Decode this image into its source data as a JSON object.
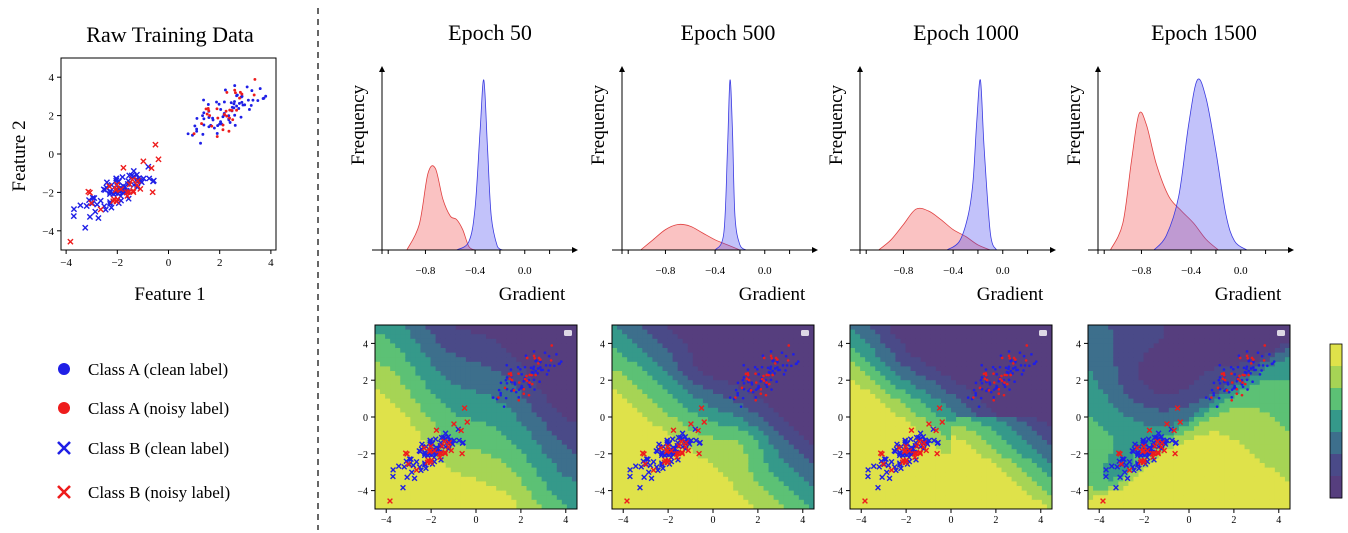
{
  "raw_panel": {
    "title": "Raw Training Data",
    "xlabel": "Feature 1",
    "ylabel": "Feature 2",
    "ticks": [
      -4,
      -2,
      0,
      2,
      4
    ]
  },
  "legend": {
    "items": [
      {
        "label": "Class A (clean label)",
        "marker": "circle",
        "color": "#1f1fe6"
      },
      {
        "label": "Class A (noisy label)",
        "marker": "circle",
        "color": "#ee1c1c"
      },
      {
        "label": "Class B (clean label)",
        "marker": "x",
        "color": "#1f1fe6"
      },
      {
        "label": "Class B (noisy label)",
        "marker": "x",
        "color": "#ee1c1c"
      }
    ]
  },
  "epochs": [
    {
      "title": "Epoch 50"
    },
    {
      "title": "Epoch 500"
    },
    {
      "title": "Epoch 1000"
    },
    {
      "title": "Epoch 1500"
    }
  ],
  "gradient_plot": {
    "xlabel": "Gradient",
    "ylabel": "Frequency",
    "ticks": [
      "−0.8",
      "−0.4",
      "0.0"
    ]
  },
  "boundary_plot": {
    "ticks": [
      -4,
      -2,
      0,
      2,
      4
    ]
  },
  "colors": {
    "clean": "#1f1fe6",
    "noisy": "#ee1c1c",
    "kde_clean_fill": "rgba(80,80,240,0.35)",
    "kde_noisy_fill": "rgba(240,80,80,0.35)",
    "contour": [
      "#dfe24a",
      "#a6d455",
      "#5cc175",
      "#35998a",
      "#3d6f8c",
      "#4a4a88",
      "#563e7e"
    ]
  },
  "chart_data": [
    {
      "type": "scatter",
      "title": "Raw Training Data",
      "xlabel": "Feature 1",
      "ylabel": "Feature 2",
      "xlim": [
        -4.2,
        4.2
      ],
      "ylim": [
        -5,
        5
      ],
      "series": [
        {
          "name": "Class A (clean label)",
          "description_points_center": [
            2.3,
            2.3
          ],
          "spread": 0.9
        },
        {
          "name": "Class A (noisy label)",
          "description_points_center": [
            2.1,
            2.3
          ],
          "spread": 0.9
        },
        {
          "name": "Class B (clean label)",
          "description_points_center": [
            -2.0,
            -2.0
          ],
          "spread": 0.9
        },
        {
          "name": "Class B (noisy label)",
          "description_points_center": [
            -1.8,
            -1.9
          ],
          "spread": 0.9
        }
      ]
    },
    {
      "type": "area",
      "title": "Epoch 50",
      "xlabel": "Gradient",
      "ylabel": "Frequency",
      "series": [
        {
          "name": "Class A (noisy label)",
          "x": [
            -0.95,
            -0.85,
            -0.78,
            -0.72,
            -0.66,
            -0.6,
            -0.55,
            -0.5,
            -0.45,
            -0.4
          ],
          "y": [
            0.0,
            0.15,
            0.45,
            0.48,
            0.3,
            0.2,
            0.18,
            0.12,
            0.02,
            0.0
          ]
        },
        {
          "name": "Class A (clean label)",
          "x": [
            -0.55,
            -0.45,
            -0.4,
            -0.36,
            -0.33,
            -0.3,
            -0.27,
            -0.22,
            -0.18
          ],
          "y": [
            0.0,
            0.05,
            0.25,
            0.7,
            1.0,
            0.6,
            0.2,
            0.02,
            0.0
          ]
        }
      ]
    },
    {
      "type": "area",
      "title": "Epoch 500",
      "xlabel": "Gradient",
      "ylabel": "Frequency",
      "series": [
        {
          "name": "Class A (noisy label)",
          "x": [
            -1.0,
            -0.9,
            -0.8,
            -0.7,
            -0.6,
            -0.5,
            -0.4,
            -0.3,
            -0.2
          ],
          "y": [
            0.0,
            0.06,
            0.12,
            0.15,
            0.14,
            0.1,
            0.06,
            0.03,
            0.0
          ]
        },
        {
          "name": "Class A (clean label)",
          "x": [
            -0.4,
            -0.33,
            -0.3,
            -0.28,
            -0.26,
            -0.24,
            -0.2,
            -0.15
          ],
          "y": [
            0.0,
            0.1,
            0.6,
            1.0,
            0.7,
            0.2,
            0.03,
            0.0
          ]
        }
      ]
    },
    {
      "type": "area",
      "title": "Epoch 1000",
      "xlabel": "Gradient",
      "ylabel": "Frequency",
      "series": [
        {
          "name": "Class A (noisy label)",
          "x": [
            -1.0,
            -0.9,
            -0.8,
            -0.7,
            -0.6,
            -0.5,
            -0.4,
            -0.3,
            -0.2,
            -0.1
          ],
          "y": [
            0.0,
            0.06,
            0.15,
            0.24,
            0.23,
            0.18,
            0.12,
            0.08,
            0.03,
            0.0
          ]
        },
        {
          "name": "Class A (clean label)",
          "x": [
            -0.45,
            -0.35,
            -0.28,
            -0.24,
            -0.21,
            -0.18,
            -0.15,
            -0.1,
            -0.05
          ],
          "y": [
            0.0,
            0.05,
            0.2,
            0.4,
            0.75,
            1.0,
            0.6,
            0.1,
            0.0
          ]
        }
      ]
    },
    {
      "type": "area",
      "title": "Epoch 1500",
      "xlabel": "Gradient",
      "ylabel": "Frequency",
      "series": [
        {
          "name": "Class A (noisy label)",
          "x": [
            -1.05,
            -0.95,
            -0.88,
            -0.82,
            -0.76,
            -0.68,
            -0.58,
            -0.48,
            -0.38,
            -0.28,
            -0.18
          ],
          "y": [
            0.0,
            0.15,
            0.5,
            0.76,
            0.7,
            0.48,
            0.3,
            0.22,
            0.15,
            0.06,
            0.0
          ]
        },
        {
          "name": "Class A (clean label)",
          "x": [
            -0.7,
            -0.6,
            -0.5,
            -0.42,
            -0.35,
            -0.28,
            -0.2,
            -0.12,
            -0.05,
            0.05
          ],
          "y": [
            0.0,
            0.08,
            0.3,
            0.7,
            0.95,
            0.85,
            0.55,
            0.2,
            0.05,
            0.0
          ]
        }
      ]
    }
  ]
}
